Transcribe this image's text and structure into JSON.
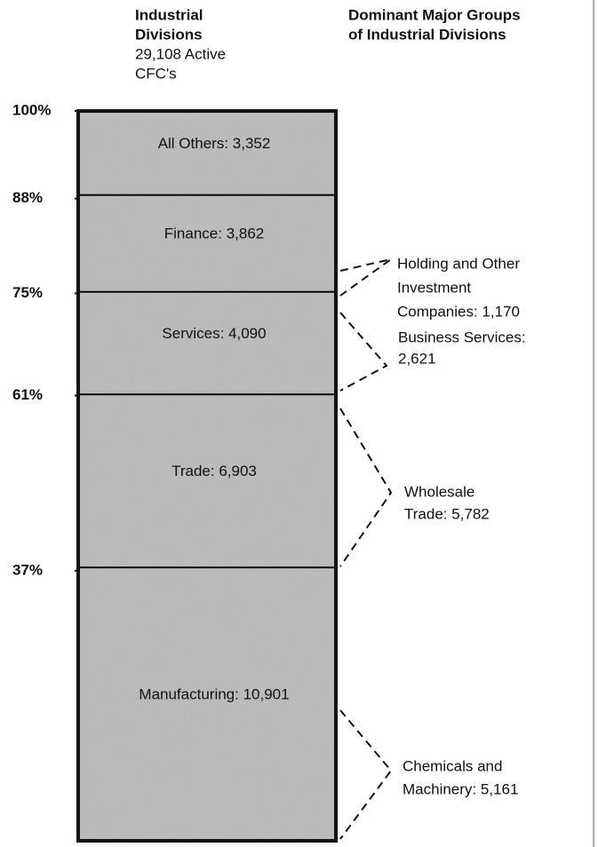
{
  "header": {
    "left": [
      "Industrial",
      "Divisions",
      "29,108 Active",
      "CFC's"
    ],
    "right": [
      "Dominant Major Groups",
      "of Industrial Divisions"
    ]
  },
  "chart_data": {
    "type": "stacked_bar",
    "values": [
      10901,
      6903,
      4090,
      3862,
      3352
    ],
    "value_labels": [
      "Manufacturing: 10,901",
      "Trade: 6,903",
      "Services: 4,090",
      "Finance: 3,862",
      "All Others: 3,352"
    ],
    "color": "#c6c6c6",
    "ylim": [
      0,
      100
    ],
    "yticks": [
      {
        "value": 37,
        "label": "37%"
      },
      {
        "value": 61,
        "label": "61%"
      },
      {
        "value": 75,
        "label": "75%"
      },
      {
        "value": 88,
        "label": "88%"
      },
      {
        "value": 100,
        "label": "100%"
      }
    ]
  },
  "groups": [
    {
      "lines": [
        "Holding and Other",
        "Investment",
        "Companies: 1,170"
      ]
    },
    {
      "lines": [
        "Business Services:",
        "2,621"
      ]
    },
    {
      "lines": [
        "Wholesale",
        "Trade: 5,782"
      ]
    },
    {
      "lines": [
        "Chemicals and",
        "Machinery: 5,161"
      ]
    }
  ]
}
